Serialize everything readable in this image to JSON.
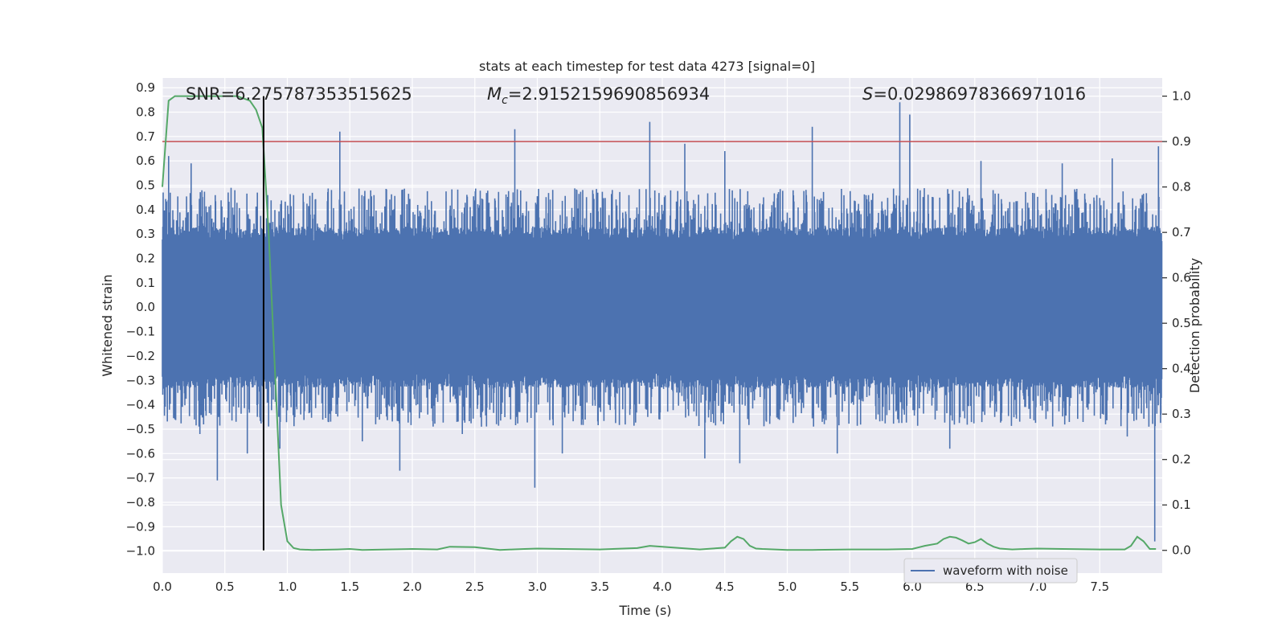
{
  "chart_data": {
    "type": "line",
    "title": "stats at each timestep for test data 4273 [signal=0]",
    "xlabel": "Time (s)",
    "ylabel_left": "Whitened strain",
    "ylabel_right": "Detection probability",
    "xlim": [
      0.0,
      8.0
    ],
    "ylim_left": [
      -1.09,
      0.94
    ],
    "ylim_right": [
      -0.05,
      1.04
    ],
    "xticks": [
      0.0,
      0.5,
      1.0,
      1.5,
      2.0,
      2.5,
      3.0,
      3.5,
      4.0,
      4.5,
      5.0,
      5.5,
      6.0,
      6.5,
      7.0,
      7.5
    ],
    "xtick_labels": [
      "0.0",
      "0.5",
      "1.0",
      "1.5",
      "2.0",
      "2.5",
      "3.0",
      "3.5",
      "4.0",
      "4.5",
      "5.0",
      "5.5",
      "6.0",
      "6.5",
      "7.0",
      "7.5"
    ],
    "yticks_left": [
      0.9,
      0.8,
      0.7,
      0.6,
      0.5,
      0.4,
      0.3,
      0.2,
      0.1,
      0.0,
      -0.1,
      -0.2,
      -0.3,
      -0.4,
      -0.5,
      -0.6,
      -0.7,
      -0.8,
      -0.9,
      -1.0
    ],
    "ytick_labels_left": [
      "0.9",
      "0.8",
      "0.7",
      "0.6",
      "0.5",
      "0.4",
      "0.3",
      "0.2",
      "0.1",
      "0.0",
      "−0.1",
      "−0.2",
      "−0.3",
      "−0.4",
      "−0.5",
      "−0.6",
      "−0.7",
      "−0.8",
      "−0.9",
      "−1.0"
    ],
    "yticks_right": [
      1.0,
      0.9,
      0.8,
      0.7,
      0.6,
      0.5,
      0.4,
      0.3,
      0.2,
      0.1,
      0.0
    ],
    "ytick_labels_right": [
      "1.0",
      "0.9",
      "0.8",
      "0.7",
      "0.6",
      "0.5",
      "0.4",
      "0.3",
      "0.2",
      "0.1",
      "0.0"
    ],
    "annotations": {
      "snr": "SNR=6.275787353515625",
      "mc_symbol": "M",
      "mc_sub": "c",
      "mc_value": "=2.9152159690856934",
      "s_symbol": "S",
      "s_value": "=0.02986978366971016"
    },
    "threshold_probability": 0.9,
    "vertical_marker_time": 0.81,
    "waveform": {
      "name": "waveform with noise",
      "typical_envelope": 0.27,
      "noise_peaks": [
        {
          "t": 0.05,
          "v": 0.62
        },
        {
          "t": 0.1,
          "v": -0.46
        },
        {
          "t": 0.23,
          "v": 0.59
        },
        {
          "t": 0.3,
          "v": -0.52
        },
        {
          "t": 0.44,
          "v": -0.71
        },
        {
          "t": 0.55,
          "v": 0.49
        },
        {
          "t": 0.68,
          "v": -0.6
        },
        {
          "t": 0.76,
          "v": 0.47
        },
        {
          "t": 0.94,
          "v": -0.58
        },
        {
          "t": 1.42,
          "v": 0.72
        },
        {
          "t": 1.6,
          "v": -0.55
        },
        {
          "t": 1.9,
          "v": -0.67
        },
        {
          "t": 2.4,
          "v": -0.52
        },
        {
          "t": 2.82,
          "v": 0.73
        },
        {
          "t": 2.98,
          "v": -0.74
        },
        {
          "t": 3.2,
          "v": -0.6
        },
        {
          "t": 3.9,
          "v": 0.76
        },
        {
          "t": 4.18,
          "v": 0.67
        },
        {
          "t": 4.34,
          "v": -0.62
        },
        {
          "t": 4.5,
          "v": 0.64
        },
        {
          "t": 4.62,
          "v": -0.64
        },
        {
          "t": 5.2,
          "v": 0.74
        },
        {
          "t": 5.4,
          "v": -0.6
        },
        {
          "t": 5.9,
          "v": 0.84
        },
        {
          "t": 5.98,
          "v": 0.79
        },
        {
          "t": 6.3,
          "v": -0.58
        },
        {
          "t": 6.55,
          "v": 0.6
        },
        {
          "t": 7.2,
          "v": 0.59
        },
        {
          "t": 7.6,
          "v": 0.61
        },
        {
          "t": 7.72,
          "v": -0.53
        },
        {
          "t": 7.94,
          "v": -0.96
        },
        {
          "t": 7.97,
          "v": 0.66
        }
      ]
    },
    "detection_probability": {
      "color": "#55a868",
      "t": [
        0.0,
        0.05,
        0.1,
        0.2,
        0.3,
        0.4,
        0.5,
        0.6,
        0.7,
        0.75,
        0.8,
        0.85,
        0.9,
        0.95,
        1.0,
        1.05,
        1.1,
        1.2,
        1.4,
        1.5,
        1.6,
        1.8,
        2.0,
        2.2,
        2.3,
        2.5,
        2.6,
        2.7,
        2.8,
        2.9,
        3.0,
        3.2,
        3.5,
        3.8,
        3.9,
        4.0,
        4.1,
        4.2,
        4.3,
        4.4,
        4.5,
        4.55,
        4.6,
        4.65,
        4.7,
        4.75,
        4.8,
        4.9,
        5.0,
        5.2,
        5.5,
        5.8,
        6.0,
        6.1,
        6.2,
        6.25,
        6.3,
        6.35,
        6.4,
        6.45,
        6.5,
        6.55,
        6.6,
        6.65,
        6.7,
        6.8,
        6.9,
        7.0,
        7.2,
        7.5,
        7.7,
        7.75,
        7.8,
        7.85,
        7.9,
        7.95
      ],
      "p": [
        0.8,
        0.99,
        1.0,
        1.0,
        1.0,
        1.0,
        1.0,
        1.0,
        0.99,
        0.97,
        0.93,
        0.7,
        0.4,
        0.1,
        0.02,
        0.005,
        0.002,
        0.001,
        0.002,
        0.003,
        0.001,
        0.002,
        0.003,
        0.002,
        0.008,
        0.007,
        0.004,
        0.001,
        0.002,
        0.003,
        0.004,
        0.003,
        0.002,
        0.005,
        0.01,
        0.008,
        0.006,
        0.004,
        0.002,
        0.004,
        0.006,
        0.02,
        0.03,
        0.025,
        0.01,
        0.004,
        0.003,
        0.002,
        0.001,
        0.001,
        0.002,
        0.002,
        0.003,
        0.01,
        0.015,
        0.025,
        0.03,
        0.028,
        0.022,
        0.015,
        0.018,
        0.025,
        0.015,
        0.008,
        0.004,
        0.002,
        0.003,
        0.004,
        0.003,
        0.002,
        0.002,
        0.01,
        0.03,
        0.02,
        0.003,
        0.003
      ]
    },
    "legend": {
      "label": "waveform with noise",
      "location": "lower-right"
    },
    "colors": {
      "waveform": "#4c72b0",
      "probability": "#55a868",
      "threshold": "#c44e52",
      "marker": "#000000",
      "background": "#eaeaf2",
      "grid": "#ffffff"
    }
  }
}
